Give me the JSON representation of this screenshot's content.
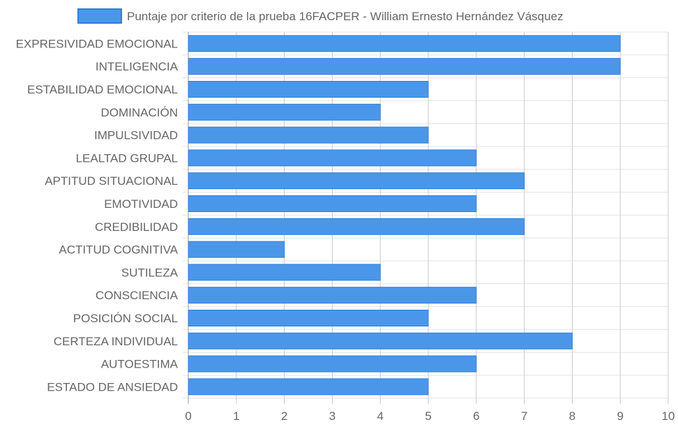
{
  "chart_data": {
    "type": "bar",
    "orientation": "horizontal",
    "categories": [
      "EXPRESIVIDAD EMOCIONAL",
      "INTELIGENCIA",
      "ESTABILIDAD EMOCIONAL",
      "DOMINACIÓN",
      "IMPULSIVIDAD",
      "LEALTAD GRUPAL",
      "APTITUD SITUACIONAL",
      "EMOTIVIDAD",
      "CREDIBILIDAD",
      "ACTITUD COGNITIVA",
      "SUTILEZA",
      "CONSCIENCIA",
      "POSICIÓN SOCIAL",
      "CERTEZA INDIVIDUAL",
      "AUTOESTIMA",
      "ESTADO DE ANSIEDAD"
    ],
    "series": [
      {
        "name": "Puntaje por criterio de la prueba 16FACPER - William Ernesto Hernández Vásquez",
        "values": [
          9,
          9,
          5,
          4,
          5,
          6,
          7,
          6,
          7,
          2,
          4,
          6,
          5,
          8,
          6,
          5
        ],
        "color": "#4a97ea",
        "border_color": "#2f7fd8"
      }
    ],
    "x_ticks": [
      "0",
      "1",
      "2",
      "3",
      "4",
      "5",
      "6",
      "7",
      "8",
      "9",
      "10"
    ],
    "xlim": [
      0,
      10
    ],
    "grid": true,
    "legend_position": "top"
  }
}
